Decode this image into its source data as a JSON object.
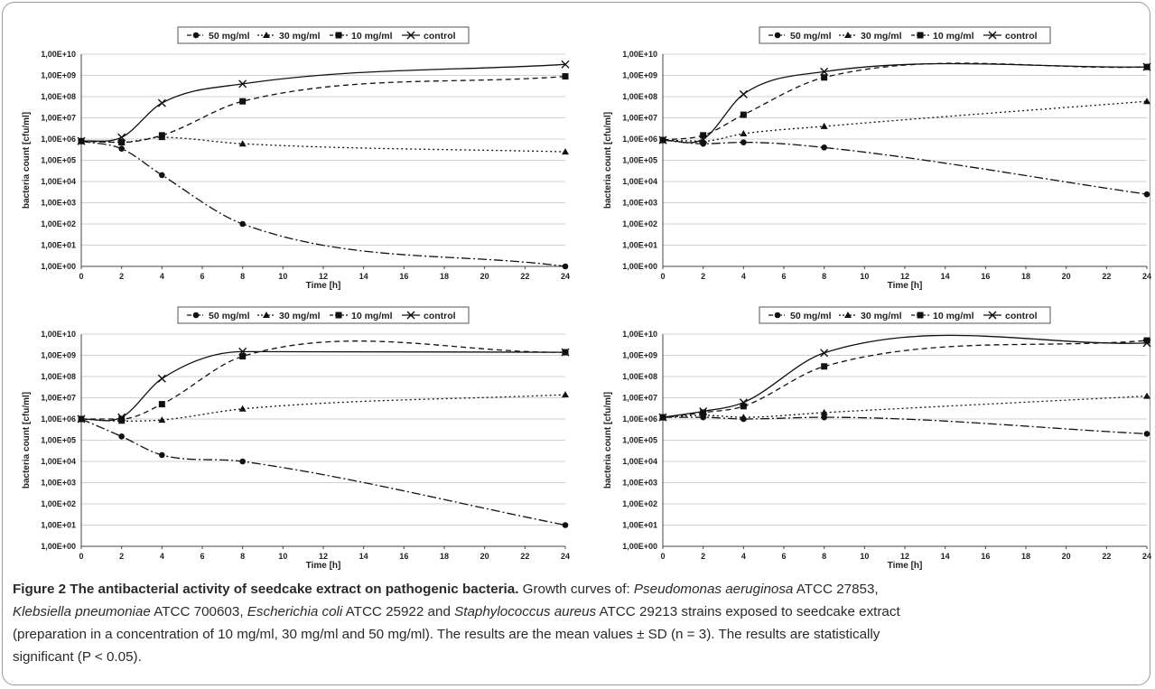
{
  "legend": [
    "50 mg/ml",
    "30 mg/ml",
    "10 mg/ml",
    "control"
  ],
  "caption": {
    "title": "Figure 2 The antibacterial activity of seedcake extract on pathogenic bacteria.",
    "p1": " Growth curves of: ",
    "sp1": "Pseudomonas aeruginosa",
    "t1": " ATCC 27853,",
    "sp2": "Klebsiella pneumoniae",
    "t2": " ATCC 700603, ",
    "sp3": "Escherichia coli",
    "t3": " ATCC 25922 and ",
    "sp4": "Staphylococcus aureus",
    "t4": " ATCC 29213 strains exposed to seedcake extract",
    "l3": "(preparation in a concentration of 10 mg/ml, 30 mg/ml and 50 mg/ml). The results are the mean values ± SD (n = 3). The results are statistically",
    "l4": "significant (P < 0.05)."
  },
  "chart_data": [
    {
      "type": "line",
      "xlabel": "Time [h]",
      "ylabel": "bacteria count [cfu/ml]",
      "x": [
        0,
        2,
        4,
        8,
        24
      ],
      "x_ticks": [
        0,
        2,
        4,
        6,
        8,
        10,
        12,
        14,
        16,
        18,
        20,
        22,
        24
      ],
      "y_scale": "log",
      "y_tick_labels": [
        "1,00E+00",
        "1,00E+01",
        "1,00E+02",
        "1,00E+03",
        "1,00E+04",
        "1,00E+05",
        "1,00E+06",
        "1,00E+07",
        "1,00E+08",
        "1,00E+09",
        "1,00E+10"
      ],
      "ylim": [
        1,
        10000000000
      ],
      "series": [
        {
          "name": "50 mg/ml",
          "values": [
            800000,
            350000,
            20000,
            100,
            1
          ]
        },
        {
          "name": "30 mg/ml",
          "values": [
            800000,
            700000,
            1200000,
            600000,
            250000
          ]
        },
        {
          "name": "10 mg/ml",
          "values": [
            800000,
            700000,
            1500000,
            60000000,
            900000000
          ]
        },
        {
          "name": "control",
          "values": [
            800000,
            1200000,
            50000000,
            400000000,
            3300000000
          ]
        }
      ]
    },
    {
      "type": "line",
      "xlabel": "Time [h]",
      "ylabel": "bacteria count [cfu/ml]",
      "x": [
        0,
        2,
        4,
        8,
        24
      ],
      "x_ticks": [
        0,
        2,
        4,
        6,
        8,
        10,
        12,
        14,
        16,
        18,
        20,
        22,
        24
      ],
      "y_scale": "log",
      "y_tick_labels": [
        "1,00E+00",
        "1,00E+01",
        "1,00E+02",
        "1,00E+03",
        "1,00E+04",
        "1,00E+05",
        "1,00E+06",
        "1,00E+07",
        "1,00E+08",
        "1,00E+09",
        "1,00E+10"
      ],
      "ylim": [
        1,
        10000000000
      ],
      "series": [
        {
          "name": "50 mg/ml",
          "values": [
            900000,
            600000,
            700000,
            400000,
            2500
          ]
        },
        {
          "name": "30 mg/ml",
          "values": [
            900000,
            800000,
            1800000,
            4000000,
            60000000
          ]
        },
        {
          "name": "10 mg/ml",
          "values": [
            900000,
            1500000,
            14000000,
            800000000,
            2500000000
          ]
        },
        {
          "name": "control",
          "values": [
            900000,
            1000000,
            130000000,
            1500000000,
            2500000000
          ]
        }
      ]
    },
    {
      "type": "line",
      "xlabel": "Time [h]",
      "ylabel": "bacteria count [cfu/ml]",
      "x": [
        0,
        2,
        4,
        8,
        24
      ],
      "x_ticks": [
        0,
        2,
        4,
        6,
        8,
        10,
        12,
        14,
        16,
        18,
        20,
        22,
        24
      ],
      "y_scale": "log",
      "y_tick_labels": [
        "1,00E+00",
        "1,00E+01",
        "1,00E+02",
        "1,00E+03",
        "1,00E+04",
        "1,00E+05",
        "1,00E+06",
        "1,00E+07",
        "1,00E+08",
        "1,00E+09",
        "1,00E+10"
      ],
      "ylim": [
        1,
        10000000000
      ],
      "series": [
        {
          "name": "50 mg/ml",
          "values": [
            1000000,
            150000,
            20000,
            10000,
            10
          ]
        },
        {
          "name": "30 mg/ml",
          "values": [
            1000000,
            800000,
            900000,
            3000000,
            14000000
          ]
        },
        {
          "name": "10 mg/ml",
          "values": [
            1000000,
            1000000,
            5000000,
            900000000,
            1400000000
          ]
        },
        {
          "name": "control",
          "values": [
            1000000,
            1200000,
            80000000,
            1500000000,
            1400000000
          ]
        }
      ]
    },
    {
      "type": "line",
      "xlabel": "Time [h]",
      "ylabel": "bacteria count [cfu/ml]",
      "x": [
        0,
        2,
        4,
        8,
        24
      ],
      "x_ticks": [
        0,
        2,
        4,
        6,
        8,
        10,
        12,
        14,
        16,
        18,
        20,
        22,
        24
      ],
      "y_scale": "log",
      "y_tick_labels": [
        "1,00E+00",
        "1,00E+01",
        "1,00E+02",
        "1,00E+03",
        "1,00E+04",
        "1,00E+05",
        "1,00E+06",
        "1,00E+07",
        "1,00E+08",
        "1,00E+09",
        "1,00E+10"
      ],
      "ylim": [
        1,
        10000000000
      ],
      "series": [
        {
          "name": "50 mg/ml",
          "values": [
            1200000,
            1200000,
            1000000,
            1200000,
            200000
          ]
        },
        {
          "name": "30 mg/ml",
          "values": [
            1200000,
            1500000,
            1200000,
            2000000,
            12000000
          ]
        },
        {
          "name": "10 mg/ml",
          "values": [
            1200000,
            2000000,
            4000000,
            300000000,
            5000000000
          ]
        },
        {
          "name": "control",
          "values": [
            1200000,
            2300000,
            6000000,
            1300000000,
            3800000000
          ]
        }
      ]
    }
  ]
}
